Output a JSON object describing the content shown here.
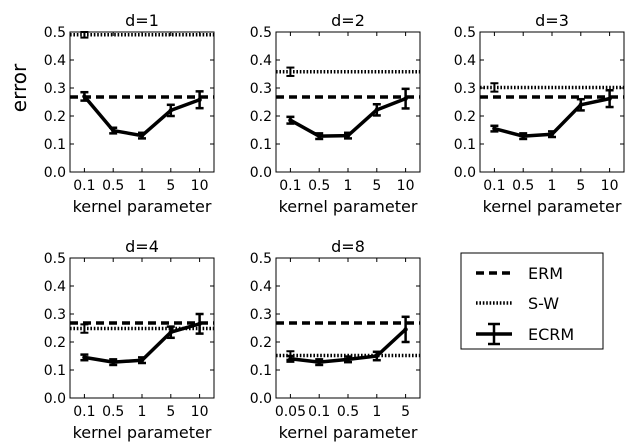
{
  "figure": {
    "ylabel": "error",
    "xlabel": "kernel parameter"
  },
  "legend": {
    "items": [
      {
        "label": "ERM",
        "style": "dashed"
      },
      {
        "label": "S-W",
        "style": "dotted"
      },
      {
        "label": "ECRM",
        "style": "solid-errorbar"
      }
    ]
  },
  "chart_data": [
    {
      "type": "line",
      "title": "d=1",
      "categories": [
        "0.1",
        "0.5",
        "1",
        "5",
        "10"
      ],
      "ylim": [
        0.0,
        0.5
      ],
      "yticks": [
        "0.0",
        "0.1",
        "0.2",
        "0.3",
        "0.4",
        "0.5"
      ],
      "xlabel": "kernel parameter",
      "ylabel": "error",
      "series": [
        {
          "name": "ECRM",
          "values": [
            0.27,
            0.148,
            0.13,
            0.22,
            0.258
          ],
          "errors": [
            0.015,
            0.01,
            0.01,
            0.02,
            0.03
          ]
        },
        {
          "name": "ERM",
          "constant": 0.268
        },
        {
          "name": "S-W",
          "constant": 0.49,
          "error": 0.01
        }
      ]
    },
    {
      "type": "line",
      "title": "d=2",
      "categories": [
        "0.1",
        "0.5",
        "1",
        "5",
        "10"
      ],
      "ylim": [
        0.0,
        0.5
      ],
      "yticks": [
        "0.0",
        "0.1",
        "0.2",
        "0.3",
        "0.4",
        "0.5"
      ],
      "xlabel": "kernel parameter",
      "ylabel": "",
      "series": [
        {
          "name": "ECRM",
          "values": [
            0.185,
            0.128,
            0.13,
            0.222,
            0.262
          ],
          "errors": [
            0.012,
            0.01,
            0.01,
            0.02,
            0.035
          ]
        },
        {
          "name": "ERM",
          "constant": 0.268
        },
        {
          "name": "S-W",
          "constant": 0.358,
          "error": 0.015
        }
      ]
    },
    {
      "type": "line",
      "title": "d=3",
      "categories": [
        "0.1",
        "0.5",
        "1",
        "5",
        "10"
      ],
      "ylim": [
        0.0,
        0.5
      ],
      "yticks": [
        "0.0",
        "0.1",
        "0.2",
        "0.3",
        "0.4",
        "0.5"
      ],
      "xlabel": "kernel parameter",
      "ylabel": "",
      "series": [
        {
          "name": "ECRM",
          "values": [
            0.155,
            0.128,
            0.135,
            0.24,
            0.262
          ],
          "errors": [
            0.01,
            0.01,
            0.01,
            0.02,
            0.03
          ]
        },
        {
          "name": "ERM",
          "constant": 0.268
        },
        {
          "name": "S-W",
          "constant": 0.302,
          "error": 0.015
        }
      ]
    },
    {
      "type": "line",
      "title": "d=4",
      "categories": [
        "0.1",
        "0.5",
        "1",
        "5",
        "10"
      ],
      "ylim": [
        0.0,
        0.5
      ],
      "yticks": [
        "0.0",
        "0.1",
        "0.2",
        "0.3",
        "0.4",
        "0.5"
      ],
      "xlabel": "kernel parameter",
      "ylabel": "",
      "series": [
        {
          "name": "ECRM",
          "values": [
            0.145,
            0.128,
            0.135,
            0.235,
            0.265
          ],
          "errors": [
            0.01,
            0.01,
            0.01,
            0.02,
            0.035
          ]
        },
        {
          "name": "ERM",
          "constant": 0.268
        },
        {
          "name": "S-W",
          "constant": 0.248,
          "error": 0.015
        }
      ]
    },
    {
      "type": "line",
      "title": "d=8",
      "categories": [
        "0.05",
        "0.1",
        "0.5",
        "1",
        "5"
      ],
      "ylim": [
        0.0,
        0.5
      ],
      "yticks": [
        "0.0",
        "0.1",
        "0.2",
        "0.3",
        "0.4",
        "0.5"
      ],
      "xlabel": "kernel parameter",
      "ylabel": "",
      "series": [
        {
          "name": "ECRM",
          "values": [
            0.14,
            0.128,
            0.138,
            0.15,
            0.245
          ],
          "errors": [
            0.01,
            0.01,
            0.01,
            0.015,
            0.045
          ]
        },
        {
          "name": "ERM",
          "constant": 0.268
        },
        {
          "name": "S-W",
          "constant": 0.152,
          "error": 0.015
        }
      ]
    }
  ]
}
